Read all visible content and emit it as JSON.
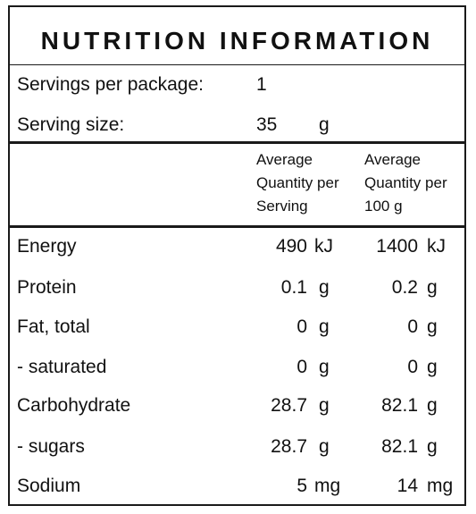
{
  "title": "NUTRITION INFORMATION",
  "servings": {
    "label": "Servings per package:",
    "value": "1"
  },
  "serving_size": {
    "label": "Serving size:",
    "value": "35",
    "unit": "g"
  },
  "headers": {
    "per_serving": [
      "Average",
      "Quantity per",
      "Serving"
    ],
    "per_100g": [
      "Average",
      "Quantity per",
      "100 g"
    ]
  },
  "rows": [
    {
      "name": "Energy",
      "serving": "490",
      "serving_unit": "kJ",
      "per100": "1400",
      "per100_unit": "kJ"
    },
    {
      "name": "Protein",
      "serving": "0.1",
      "serving_unit": "g",
      "per100": "0.2",
      "per100_unit": "g"
    },
    {
      "name": "Fat, total",
      "serving": "0",
      "serving_unit": "g",
      "per100": "0",
      "per100_unit": "g"
    },
    {
      "name": "- saturated",
      "serving": "0",
      "serving_unit": "g",
      "per100": "0",
      "per100_unit": "g"
    },
    {
      "name": "Carbohydrate",
      "serving": "28.7",
      "serving_unit": "g",
      "per100": "82.1",
      "per100_unit": "g"
    },
    {
      "name": "- sugars",
      "serving": "28.7",
      "serving_unit": "g",
      "per100": "82.1",
      "per100_unit": "g"
    },
    {
      "name": "Sodium",
      "serving": "5",
      "serving_unit": "mg",
      "per100": "14",
      "per100_unit": "mg"
    }
  ]
}
